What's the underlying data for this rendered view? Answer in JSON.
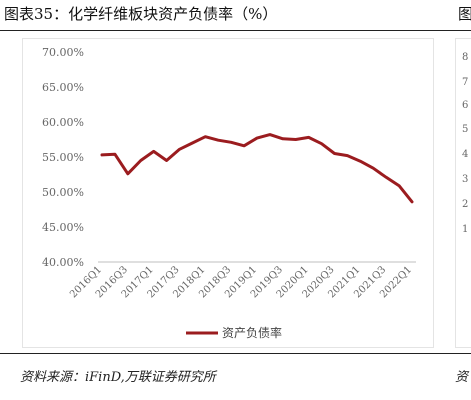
{
  "figure": {
    "title": "图表35：化学纤维板块资产负债率（%）",
    "next_title_fragment": "图",
    "source": "资料来源：iFinD,万联证券研究所",
    "next_source_fragment": "资",
    "side_ticks": [
      "8",
      "7",
      "6",
      "5",
      "4",
      "3",
      "2",
      "1"
    ]
  },
  "chart_data": {
    "type": "line",
    "title": "",
    "xlabel": "",
    "ylabel": "",
    "ylim": [
      40,
      70
    ],
    "yticks": [
      "40.00%",
      "45.00%",
      "50.00%",
      "55.00%",
      "60.00%",
      "65.00%",
      "70.00%"
    ],
    "ytick_values": [
      40,
      45,
      50,
      55,
      60,
      65,
      70
    ],
    "grid": false,
    "legend_position": "bottom",
    "line_color": "#9b1c1f",
    "categories": [
      "2016Q1",
      "2016Q2",
      "2016Q3",
      "2016Q4",
      "2017Q1",
      "2017Q2",
      "2017Q3",
      "2017Q4",
      "2018Q1",
      "2018Q2",
      "2018Q3",
      "2018Q4",
      "2019Q1",
      "2019Q2",
      "2019Q3",
      "2019Q4",
      "2020Q1",
      "2020Q2",
      "2020Q3",
      "2020Q4",
      "2021Q1",
      "2021Q2",
      "2021Q3",
      "2021Q4",
      "2022Q1"
    ],
    "tick_labels": [
      "2016Q1",
      "2016Q3",
      "2017Q1",
      "2017Q3",
      "2018Q1",
      "2018Q3",
      "2019Q1",
      "2019Q3",
      "2020Q1",
      "2020Q3",
      "2021Q1",
      "2021Q3",
      "2022Q1"
    ],
    "series": [
      {
        "name": "资产负债率",
        "values": [
          55.3,
          55.4,
          52.6,
          54.5,
          55.8,
          54.5,
          56.1,
          57.0,
          57.9,
          57.4,
          57.1,
          56.6,
          57.7,
          58.2,
          57.6,
          57.5,
          57.8,
          56.9,
          55.5,
          55.2,
          54.4,
          53.4,
          52.1,
          50.9,
          48.6
        ]
      }
    ]
  }
}
